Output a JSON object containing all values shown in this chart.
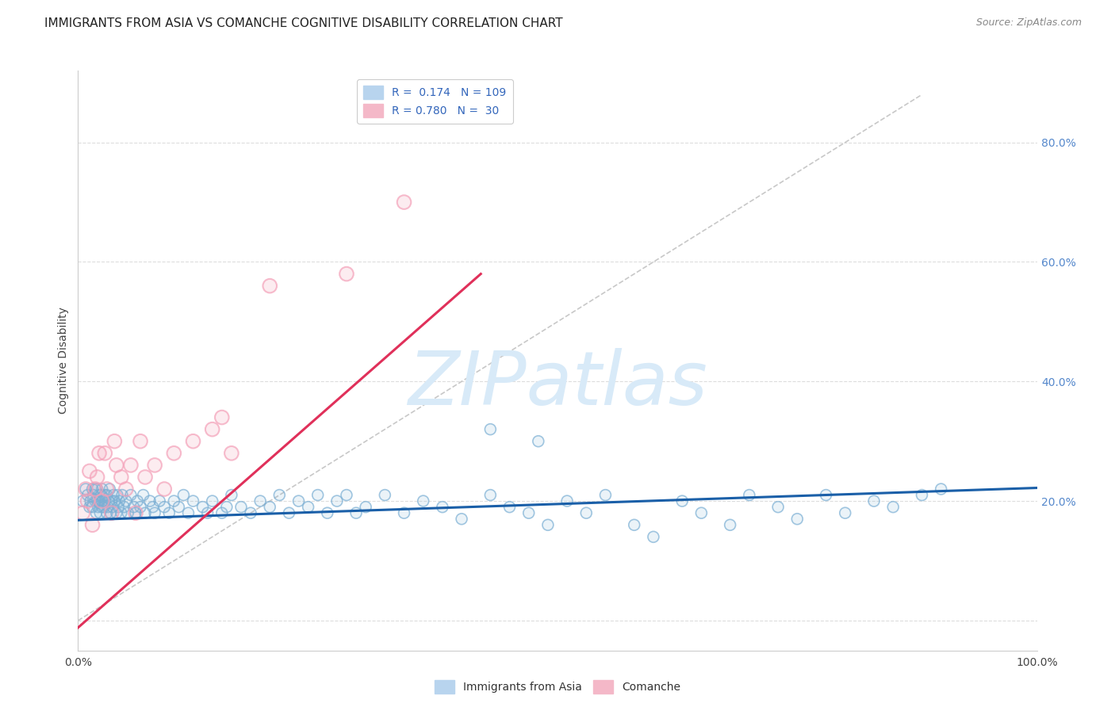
{
  "title": "IMMIGRANTS FROM ASIA VS COMANCHE COGNITIVE DISABILITY CORRELATION CHART",
  "source": "Source: ZipAtlas.com",
  "ylabel": "Cognitive Disability",
  "xlim": [
    0.0,
    1.0
  ],
  "ylim": [
    -0.05,
    0.92
  ],
  "yticks": [
    0.0,
    0.2,
    0.4,
    0.6,
    0.8
  ],
  "ytick_labels": [
    "",
    "20.0%",
    "40.0%",
    "60.0%",
    "80.0%"
  ],
  "xticks": [
    0.0,
    0.2,
    0.4,
    0.6,
    0.8,
    1.0
  ],
  "xtick_labels": [
    "0.0%",
    "",
    "",
    "",
    "",
    "100.0%"
  ],
  "blue_color": "#7bafd4",
  "pink_color": "#f4a0b8",
  "blue_line_color": "#1a5fa8",
  "pink_line_color": "#e0305a",
  "diag_line_color": "#c8c8c8",
  "watermark_text": "ZIPatlas",
  "watermark_color": "#d8eaf8",
  "grid_color": "#dddddd",
  "background_color": "#ffffff",
  "blue_scatter_x": [
    0.005,
    0.008,
    0.01,
    0.012,
    0.013,
    0.015,
    0.015,
    0.016,
    0.018,
    0.018,
    0.019,
    0.02,
    0.02,
    0.021,
    0.022,
    0.022,
    0.023,
    0.024,
    0.025,
    0.025,
    0.026,
    0.027,
    0.028,
    0.028,
    0.03,
    0.03,
    0.031,
    0.032,
    0.033,
    0.034,
    0.035,
    0.036,
    0.037,
    0.038,
    0.04,
    0.041,
    0.042,
    0.043,
    0.045,
    0.046,
    0.048,
    0.05,
    0.052,
    0.055,
    0.058,
    0.06,
    0.062,
    0.065,
    0.068,
    0.07,
    0.075,
    0.078,
    0.08,
    0.085,
    0.09,
    0.095,
    0.1,
    0.105,
    0.11,
    0.115,
    0.12,
    0.13,
    0.135,
    0.14,
    0.15,
    0.155,
    0.16,
    0.17,
    0.18,
    0.19,
    0.2,
    0.21,
    0.22,
    0.23,
    0.24,
    0.25,
    0.26,
    0.27,
    0.28,
    0.29,
    0.3,
    0.32,
    0.34,
    0.36,
    0.38,
    0.4,
    0.43,
    0.45,
    0.47,
    0.49,
    0.51,
    0.53,
    0.55,
    0.58,
    0.6,
    0.63,
    0.65,
    0.68,
    0.7,
    0.73,
    0.75,
    0.78,
    0.8,
    0.83,
    0.85,
    0.88,
    0.9,
    0.43,
    0.48
  ],
  "blue_scatter_y": [
    0.2,
    0.22,
    0.21,
    0.19,
    0.2,
    0.22,
    0.19,
    0.21,
    0.2,
    0.22,
    0.18,
    0.2,
    0.22,
    0.19,
    0.21,
    0.2,
    0.18,
    0.21,
    0.19,
    0.22,
    0.2,
    0.19,
    0.21,
    0.2,
    0.18,
    0.21,
    0.19,
    0.2,
    0.22,
    0.18,
    0.2,
    0.19,
    0.21,
    0.2,
    0.18,
    0.21,
    0.19,
    0.2,
    0.18,
    0.21,
    0.19,
    0.2,
    0.18,
    0.21,
    0.19,
    0.18,
    0.2,
    0.19,
    0.21,
    0.18,
    0.2,
    0.19,
    0.18,
    0.2,
    0.19,
    0.18,
    0.2,
    0.19,
    0.21,
    0.18,
    0.2,
    0.19,
    0.18,
    0.2,
    0.18,
    0.19,
    0.21,
    0.19,
    0.18,
    0.2,
    0.19,
    0.21,
    0.18,
    0.2,
    0.19,
    0.21,
    0.18,
    0.2,
    0.21,
    0.18,
    0.19,
    0.21,
    0.18,
    0.2,
    0.19,
    0.17,
    0.21,
    0.19,
    0.18,
    0.16,
    0.2,
    0.18,
    0.21,
    0.16,
    0.14,
    0.2,
    0.18,
    0.16,
    0.21,
    0.19,
    0.17,
    0.21,
    0.18,
    0.2,
    0.19,
    0.21,
    0.22,
    0.32,
    0.3
  ],
  "pink_scatter_x": [
    0.005,
    0.008,
    0.01,
    0.012,
    0.015,
    0.018,
    0.02,
    0.022,
    0.025,
    0.028,
    0.03,
    0.035,
    0.038,
    0.04,
    0.045,
    0.05,
    0.055,
    0.06,
    0.065,
    0.07,
    0.08,
    0.09,
    0.1,
    0.12,
    0.14,
    0.15,
    0.16,
    0.2,
    0.28,
    0.34
  ],
  "pink_scatter_y": [
    0.18,
    0.22,
    0.2,
    0.25,
    0.16,
    0.22,
    0.24,
    0.28,
    0.2,
    0.28,
    0.22,
    0.18,
    0.3,
    0.26,
    0.24,
    0.22,
    0.26,
    0.18,
    0.3,
    0.24,
    0.26,
    0.22,
    0.28,
    0.3,
    0.32,
    0.34,
    0.28,
    0.56,
    0.58,
    0.7
  ],
  "blue_line_x": [
    0.0,
    1.0
  ],
  "blue_line_y": [
    0.168,
    0.222
  ],
  "pink_line_x": [
    -0.02,
    0.42
  ],
  "pink_line_y": [
    -0.04,
    0.58
  ],
  "diag_line_x": [
    0.0,
    0.88
  ],
  "diag_line_y": [
    0.0,
    0.88
  ],
  "title_fontsize": 11,
  "axis_label_fontsize": 10,
  "tick_fontsize": 10,
  "source_fontsize": 9,
  "legend_fontsize": 10
}
